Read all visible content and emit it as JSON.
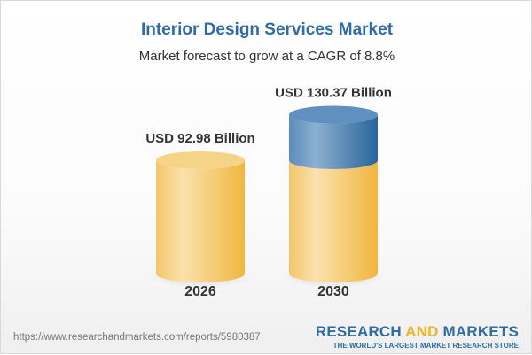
{
  "header": {
    "title": "Interior Design Services Market",
    "subtitle": "Market forecast to grow at a CAGR of 8.8%"
  },
  "chart_data": {
    "type": "bar",
    "style": "3d-cylinder",
    "categories": [
      "2026",
      "2030"
    ],
    "values": [
      92.98,
      130.37
    ],
    "data_labels": [
      "USD 92.98 Billion",
      "USD 130.37 Billion"
    ],
    "unit": "USD Billion",
    "cagr": "8.8%",
    "colors": {
      "base": "#f3c75f",
      "growth": "#4a82b4"
    }
  },
  "footer": {
    "url": "https://www.researchandmarkets.com/reports/5980387",
    "logo_text": "RESEARCH AND MARKETS",
    "logo_part1": "RESEARCH ",
    "logo_part2": "AND",
    "logo_part3": " MARKETS",
    "tagline": "THE WORLD'S LARGEST MARKET RESEARCH STORE"
  }
}
